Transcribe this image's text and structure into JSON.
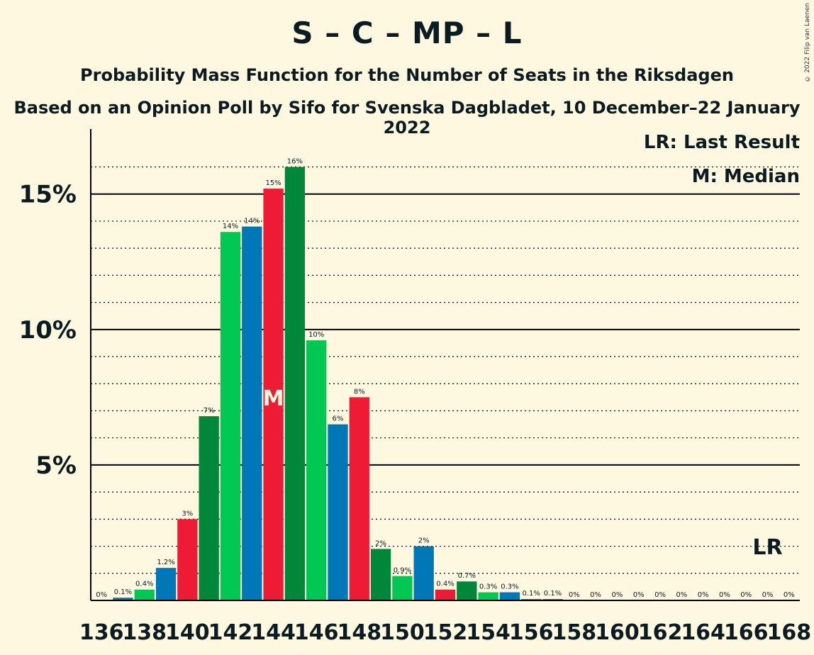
{
  "header": {
    "title": "S – C – MP – L",
    "subtitle": "Probability Mass Function for the Number of Seats in the Riksdagen",
    "source": "Based on an Opinion Poll by Sifo for Svenska Dagbladet, 10 December–22 January 2022",
    "copyright": "© 2022 Filip van Laenen"
  },
  "legend": {
    "last_result": "LR: Last Result",
    "median": "M: Median"
  },
  "colors": {
    "background": "#FFF8E1",
    "palette": [
      "#0077B6",
      "#ED1B34",
      "#00873A",
      "#00C853"
    ]
  },
  "chart_data": {
    "type": "bar",
    "x": [
      136,
      137,
      138,
      139,
      140,
      141,
      142,
      143,
      144,
      145,
      146,
      147,
      148,
      149,
      150,
      151,
      152,
      153,
      154,
      155,
      156,
      157,
      158,
      159,
      160,
      161,
      162,
      163,
      164,
      165,
      166,
      167,
      168
    ],
    "x_tick_labels": [
      "136",
      "138",
      "140",
      "142",
      "144",
      "146",
      "148",
      "150",
      "152",
      "154",
      "156",
      "158",
      "160",
      "162",
      "164",
      "166",
      "168"
    ],
    "values": [
      0,
      0.1,
      0.4,
      1.2,
      3.0,
      6.8,
      13.6,
      13.8,
      15.2,
      16.0,
      9.6,
      6.5,
      7.5,
      1.9,
      0.9,
      2.0,
      0.4,
      0.7,
      0.3,
      0.3,
      0.05,
      0.05,
      0,
      0,
      0,
      0,
      0,
      0,
      0,
      0,
      0,
      0,
      0
    ],
    "data_labels": [
      "0%",
      "0.1%",
      "0.4%",
      "1.2%",
      "3%",
      "7%",
      "14%",
      "14%",
      "15%",
      "16%",
      "10%",
      "6%",
      "8%",
      "2%",
      "0.9%",
      "2%",
      "0.4%",
      "0.7%",
      "0.3%",
      "0.3%",
      "0.1%",
      "0.1%",
      "0%",
      "0%",
      "0%",
      "0%",
      "0%",
      "0%",
      "0%",
      "0%",
      "0%",
      "0%",
      "0%"
    ],
    "colors": [
      "green",
      "blue",
      "green",
      "blue",
      "red",
      "darkgreen",
      "green",
      "blue",
      "red",
      "darkgreen",
      "green",
      "blue",
      "red",
      "darkgreen",
      "green",
      "blue",
      "red",
      "darkgreen",
      "green",
      "blue",
      "red",
      "darkgreen",
      "green",
      "blue",
      "red",
      "darkgreen",
      "green",
      "blue",
      "red",
      "darkgreen",
      "green",
      "blue",
      "red"
    ],
    "y_ticks": [
      5,
      10,
      15
    ],
    "y_tick_labels": [
      "5%",
      "10%",
      "15%"
    ],
    "ylim": [
      0,
      17.4
    ],
    "median_seat": 144,
    "median_label": "M",
    "last_result_seat": 167,
    "last_result_label": "LR",
    "grid": "dotted minor every 1%, solid major every 5%"
  }
}
